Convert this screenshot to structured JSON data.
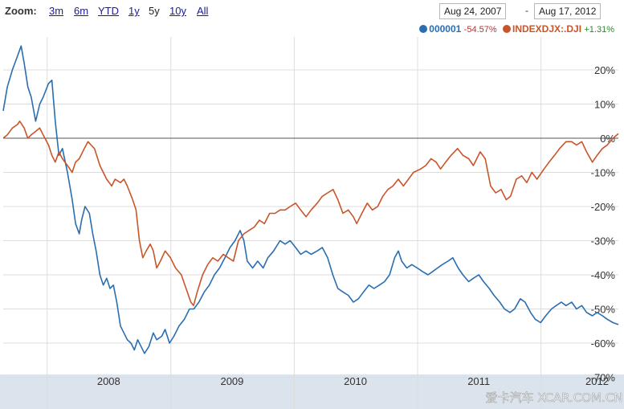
{
  "toolbar": {
    "zoom_label": "Zoom:",
    "zoom_options": [
      "3m",
      "6m",
      "YTD",
      "1y",
      "5y",
      "10y",
      "All"
    ],
    "active_zoom": "5y",
    "date_start": "Aug 24, 2007",
    "date_separator": "-",
    "date_end": "Aug 17, 2012"
  },
  "legend": [
    {
      "name": "000001",
      "change": "-54.57%",
      "color": "#2a6db0"
    },
    {
      "name": "INDEXDJX:.DJI",
      "change": "+1.31%",
      "color": "#c8552a"
    }
  ],
  "colors": {
    "baseline": "#555555",
    "axis_bar": "#dbe3ec"
  },
  "chart_data": {
    "type": "line",
    "x_start": "2007-08-24",
    "x_end": "2012-08-17",
    "ylim": [
      -72,
      30
    ],
    "yticks": [
      20,
      10,
      0,
      -10,
      -20,
      -30,
      -40,
      -50,
      -60,
      -70
    ],
    "ytick_labels": [
      "20%",
      "10%",
      "0%",
      "-10%",
      "-20%",
      "-30%",
      "-40%",
      "-50%",
      "-60%",
      "-70%"
    ],
    "x_boundaries": [
      "2008-01-01",
      "2009-01-01",
      "2010-01-01",
      "2011-01-01",
      "2012-01-01"
    ],
    "x_tick_labels": [
      {
        "label": "2008",
        "at": "2008-07-01"
      },
      {
        "label": "2009",
        "at": "2009-07-01"
      },
      {
        "label": "2010",
        "at": "2010-07-01"
      },
      {
        "label": "2011",
        "at": "2011-07-01"
      },
      {
        "label": "2012",
        "at": "2012-06-15"
      }
    ],
    "grid": true,
    "legend_position": "top-right",
    "series": [
      {
        "name": "000001",
        "color": "#2a6db0",
        "points": [
          [
            "2007-08-24",
            8
          ],
          [
            "2007-09-05",
            15
          ],
          [
            "2007-09-20",
            20
          ],
          [
            "2007-10-05",
            24
          ],
          [
            "2007-10-16",
            27
          ],
          [
            "2007-10-25",
            22
          ],
          [
            "2007-11-05",
            15
          ],
          [
            "2007-11-15",
            12
          ],
          [
            "2007-11-28",
            5
          ],
          [
            "2007-12-10",
            10
          ],
          [
            "2007-12-20",
            12
          ],
          [
            "2008-01-05",
            16
          ],
          [
            "2008-01-15",
            17
          ],
          [
            "2008-01-25",
            5
          ],
          [
            "2008-02-05",
            -5
          ],
          [
            "2008-02-15",
            -3
          ],
          [
            "2008-03-01",
            -10
          ],
          [
            "2008-03-15",
            -18
          ],
          [
            "2008-03-25",
            -25
          ],
          [
            "2008-04-05",
            -28
          ],
          [
            "2008-04-12",
            -24
          ],
          [
            "2008-04-22",
            -20
          ],
          [
            "2008-05-05",
            -22
          ],
          [
            "2008-05-15",
            -28
          ],
          [
            "2008-05-25",
            -33
          ],
          [
            "2008-06-05",
            -40
          ],
          [
            "2008-06-15",
            -43
          ],
          [
            "2008-06-25",
            -41
          ],
          [
            "2008-07-05",
            -44
          ],
          [
            "2008-07-15",
            -43
          ],
          [
            "2008-07-25",
            -48
          ],
          [
            "2008-08-05",
            -55
          ],
          [
            "2008-08-15",
            -57
          ],
          [
            "2008-08-25",
            -59
          ],
          [
            "2008-09-05",
            -60
          ],
          [
            "2008-09-15",
            -62
          ],
          [
            "2008-09-25",
            -59
          ],
          [
            "2008-10-05",
            -61
          ],
          [
            "2008-10-15",
            -63
          ],
          [
            "2008-10-28",
            -61
          ],
          [
            "2008-11-10",
            -57
          ],
          [
            "2008-11-20",
            -59
          ],
          [
            "2008-12-05",
            -58
          ],
          [
            "2008-12-15",
            -56
          ],
          [
            "2008-12-28",
            -60
          ],
          [
            "2009-01-10",
            -58
          ],
          [
            "2009-01-25",
            -55
          ],
          [
            "2009-02-10",
            -53
          ],
          [
            "2009-02-25",
            -50
          ],
          [
            "2009-03-10",
            -50
          ],
          [
            "2009-03-25",
            -48
          ],
          [
            "2009-04-10",
            -45
          ],
          [
            "2009-04-25",
            -43
          ],
          [
            "2009-05-10",
            -40
          ],
          [
            "2009-05-25",
            -38
          ],
          [
            "2009-06-10",
            -35
          ],
          [
            "2009-06-25",
            -32
          ],
          [
            "2009-07-10",
            -30
          ],
          [
            "2009-07-25",
            -27
          ],
          [
            "2009-08-05",
            -30
          ],
          [
            "2009-08-15",
            -36
          ],
          [
            "2009-08-31",
            -38
          ],
          [
            "2009-09-15",
            -36
          ],
          [
            "2009-10-01",
            -38
          ],
          [
            "2009-10-15",
            -35
          ],
          [
            "2009-11-01",
            -33
          ],
          [
            "2009-11-20",
            -30
          ],
          [
            "2009-12-05",
            -31
          ],
          [
            "2009-12-20",
            -30
          ],
          [
            "2010-01-05",
            -32
          ],
          [
            "2010-01-20",
            -34
          ],
          [
            "2010-02-05",
            -33
          ],
          [
            "2010-02-20",
            -34
          ],
          [
            "2010-03-10",
            -33
          ],
          [
            "2010-03-25",
            -32
          ],
          [
            "2010-04-10",
            -35
          ],
          [
            "2010-04-25",
            -40
          ],
          [
            "2010-05-10",
            -44
          ],
          [
            "2010-05-25",
            -45
          ],
          [
            "2010-06-10",
            -46
          ],
          [
            "2010-06-25",
            -48
          ],
          [
            "2010-07-10",
            -47
          ],
          [
            "2010-07-25",
            -45
          ],
          [
            "2010-08-10",
            -43
          ],
          [
            "2010-08-25",
            -44
          ],
          [
            "2010-09-10",
            -43
          ],
          [
            "2010-09-25",
            -42
          ],
          [
            "2010-10-10",
            -40
          ],
          [
            "2010-10-25",
            -35
          ],
          [
            "2010-11-05",
            -33
          ],
          [
            "2010-11-15",
            -36
          ],
          [
            "2010-11-30",
            -38
          ],
          [
            "2010-12-15",
            -37
          ],
          [
            "2010-12-31",
            -38
          ],
          [
            "2011-01-15",
            -39
          ],
          [
            "2011-02-01",
            -40
          ],
          [
            "2011-02-15",
            -39
          ],
          [
            "2011-03-01",
            -38
          ],
          [
            "2011-03-15",
            -37
          ],
          [
            "2011-04-01",
            -36
          ],
          [
            "2011-04-15",
            -35
          ],
          [
            "2011-05-01",
            -38
          ],
          [
            "2011-05-15",
            -40
          ],
          [
            "2011-06-01",
            -42
          ],
          [
            "2011-06-15",
            -41
          ],
          [
            "2011-07-01",
            -40
          ],
          [
            "2011-07-15",
            -42
          ],
          [
            "2011-08-01",
            -44
          ],
          [
            "2011-08-15",
            -46
          ],
          [
            "2011-09-01",
            -48
          ],
          [
            "2011-09-15",
            -50
          ],
          [
            "2011-10-01",
            -51
          ],
          [
            "2011-10-15",
            -50
          ],
          [
            "2011-11-01",
            -47
          ],
          [
            "2011-11-15",
            -48
          ],
          [
            "2011-12-01",
            -51
          ],
          [
            "2011-12-15",
            -53
          ],
          [
            "2011-12-31",
            -54
          ],
          [
            "2012-01-15",
            -52
          ],
          [
            "2012-02-01",
            -50
          ],
          [
            "2012-02-15",
            -49
          ],
          [
            "2012-03-01",
            -48
          ],
          [
            "2012-03-15",
            -49
          ],
          [
            "2012-04-01",
            -48
          ],
          [
            "2012-04-15",
            -50
          ],
          [
            "2012-05-01",
            -49
          ],
          [
            "2012-05-15",
            -51
          ],
          [
            "2012-06-01",
            -52
          ],
          [
            "2012-06-15",
            -51
          ],
          [
            "2012-07-01",
            -52
          ],
          [
            "2012-07-15",
            -53
          ],
          [
            "2012-08-01",
            -54
          ],
          [
            "2012-08-17",
            -54.57
          ]
        ]
      },
      {
        "name": "INDEXDJX:.DJI",
        "color": "#c8552a",
        "points": [
          [
            "2007-08-24",
            0
          ],
          [
            "2007-09-05",
            1
          ],
          [
            "2007-09-20",
            3
          ],
          [
            "2007-10-05",
            4
          ],
          [
            "2007-10-12",
            5
          ],
          [
            "2007-10-25",
            3
          ],
          [
            "2007-11-05",
            0
          ],
          [
            "2007-11-15",
            1
          ],
          [
            "2007-11-28",
            2
          ],
          [
            "2007-12-10",
            3
          ],
          [
            "2007-12-20",
            1
          ],
          [
            "2008-01-05",
            -2
          ],
          [
            "2008-01-15",
            -5
          ],
          [
            "2008-01-25",
            -7
          ],
          [
            "2008-02-05",
            -4
          ],
          [
            "2008-02-15",
            -6
          ],
          [
            "2008-03-01",
            -8
          ],
          [
            "2008-03-15",
            -10
          ],
          [
            "2008-03-25",
            -7
          ],
          [
            "2008-04-05",
            -6
          ],
          [
            "2008-04-20",
            -3
          ],
          [
            "2008-05-01",
            -1
          ],
          [
            "2008-05-10",
            -2
          ],
          [
            "2008-05-20",
            -3
          ],
          [
            "2008-06-05",
            -8
          ],
          [
            "2008-06-15",
            -10
          ],
          [
            "2008-06-25",
            -12
          ],
          [
            "2008-07-10",
            -14
          ],
          [
            "2008-07-20",
            -12
          ],
          [
            "2008-08-05",
            -13
          ],
          [
            "2008-08-15",
            -12
          ],
          [
            "2008-08-25",
            -14
          ],
          [
            "2008-09-10",
            -18
          ],
          [
            "2008-09-20",
            -21
          ],
          [
            "2008-09-30",
            -30
          ],
          [
            "2008-10-10",
            -35
          ],
          [
            "2008-10-20",
            -33
          ],
          [
            "2008-11-01",
            -31
          ],
          [
            "2008-11-10",
            -33
          ],
          [
            "2008-11-20",
            -38
          ],
          [
            "2008-12-01",
            -36
          ],
          [
            "2008-12-15",
            -33
          ],
          [
            "2008-12-31",
            -35
          ],
          [
            "2009-01-15",
            -38
          ],
          [
            "2009-02-01",
            -40
          ],
          [
            "2009-02-15",
            -44
          ],
          [
            "2009-03-01",
            -48
          ],
          [
            "2009-03-09",
            -49
          ],
          [
            "2009-03-20",
            -45
          ],
          [
            "2009-04-05",
            -40
          ],
          [
            "2009-04-20",
            -37
          ],
          [
            "2009-05-05",
            -35
          ],
          [
            "2009-05-20",
            -36
          ],
          [
            "2009-06-05",
            -34
          ],
          [
            "2009-06-20",
            -35
          ],
          [
            "2009-07-05",
            -36
          ],
          [
            "2009-07-20",
            -30
          ],
          [
            "2009-08-05",
            -28
          ],
          [
            "2009-08-20",
            -27
          ],
          [
            "2009-09-05",
            -26
          ],
          [
            "2009-09-20",
            -24
          ],
          [
            "2009-10-05",
            -25
          ],
          [
            "2009-10-20",
            -22
          ],
          [
            "2009-11-05",
            -22
          ],
          [
            "2009-11-20",
            -21
          ],
          [
            "2009-12-05",
            -21
          ],
          [
            "2009-12-20",
            -20
          ],
          [
            "2010-01-05",
            -19
          ],
          [
            "2010-01-20",
            -21
          ],
          [
            "2010-02-05",
            -23
          ],
          [
            "2010-02-20",
            -21
          ],
          [
            "2010-03-10",
            -19
          ],
          [
            "2010-03-25",
            -17
          ],
          [
            "2010-04-10",
            -16
          ],
          [
            "2010-04-26",
            -15
          ],
          [
            "2010-05-10",
            -18
          ],
          [
            "2010-05-25",
            -22
          ],
          [
            "2010-06-10",
            -21
          ],
          [
            "2010-06-25",
            -23
          ],
          [
            "2010-07-05",
            -25
          ],
          [
            "2010-07-20",
            -22
          ],
          [
            "2010-08-05",
            -19
          ],
          [
            "2010-08-20",
            -21
          ],
          [
            "2010-09-05",
            -20
          ],
          [
            "2010-09-20",
            -17
          ],
          [
            "2010-10-05",
            -15
          ],
          [
            "2010-10-20",
            -14
          ],
          [
            "2010-11-05",
            -12
          ],
          [
            "2010-11-20",
            -14
          ],
          [
            "2010-12-05",
            -12
          ],
          [
            "2010-12-20",
            -10
          ],
          [
            "2011-01-10",
            -9
          ],
          [
            "2011-01-25",
            -8
          ],
          [
            "2011-02-10",
            -6
          ],
          [
            "2011-02-25",
            -7
          ],
          [
            "2011-03-10",
            -9
          ],
          [
            "2011-03-25",
            -7
          ],
          [
            "2011-04-10",
            -5
          ],
          [
            "2011-04-29",
            -3
          ],
          [
            "2011-05-15",
            -5
          ],
          [
            "2011-06-01",
            -6
          ],
          [
            "2011-06-15",
            -8
          ],
          [
            "2011-07-05",
            -4
          ],
          [
            "2011-07-20",
            -6
          ],
          [
            "2011-08-05",
            -14
          ],
          [
            "2011-08-20",
            -16
          ],
          [
            "2011-09-05",
            -15
          ],
          [
            "2011-09-20",
            -18
          ],
          [
            "2011-10-03",
            -17
          ],
          [
            "2011-10-20",
            -12
          ],
          [
            "2011-11-05",
            -11
          ],
          [
            "2011-11-20",
            -13
          ],
          [
            "2011-12-05",
            -10
          ],
          [
            "2011-12-20",
            -12
          ],
          [
            "2012-01-10",
            -9
          ],
          [
            "2012-01-25",
            -7
          ],
          [
            "2012-02-10",
            -5
          ],
          [
            "2012-02-25",
            -3
          ],
          [
            "2012-03-15",
            -1
          ],
          [
            "2012-04-01",
            -1
          ],
          [
            "2012-04-15",
            -2
          ],
          [
            "2012-05-01",
            -1
          ],
          [
            "2012-05-15",
            -4
          ],
          [
            "2012-06-01",
            -7
          ],
          [
            "2012-06-15",
            -5
          ],
          [
            "2012-07-01",
            -3
          ],
          [
            "2012-07-15",
            -2
          ],
          [
            "2012-08-01",
            0
          ],
          [
            "2012-08-17",
            1.31
          ]
        ]
      }
    ]
  },
  "watermark": "爱卡汽车 XCAR.COM.CN"
}
